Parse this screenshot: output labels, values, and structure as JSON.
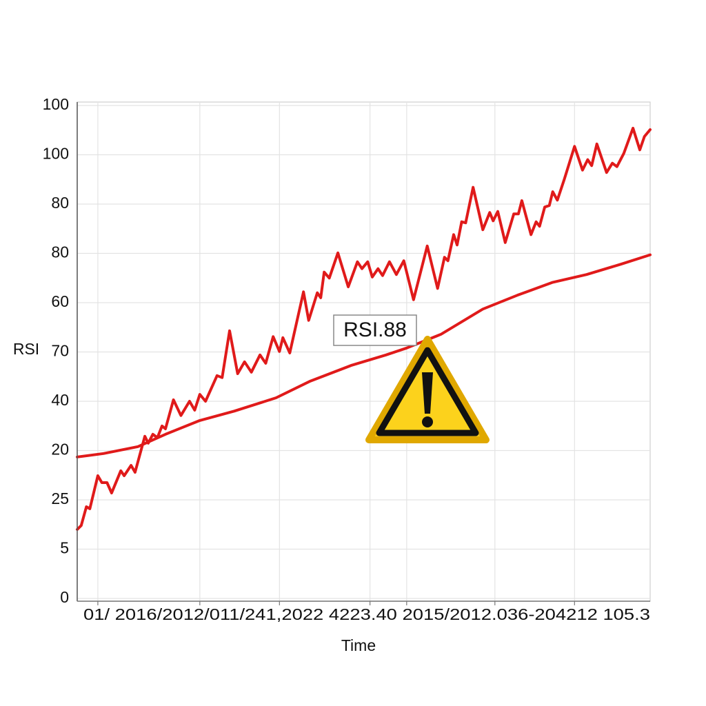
{
  "chart_data": {
    "type": "line",
    "ylabel": "RSI",
    "xlabel": "Time",
    "x_tick_text": "01/ 2016/2012/011/241,2022 4223.40 2015/2012.036-204212 105.3",
    "annotation": "RSI.88",
    "xlim": [
      0,
      100
    ],
    "xticks": [
      3.6,
      21.4,
      35.3,
      51.1,
      57.5,
      72.9,
      86.8
    ],
    "ylim": [
      0,
      100
    ],
    "yticks": [
      0,
      {
        "value": 10,
        "label": "5"
      },
      {
        "value": 20,
        "label": "25"
      },
      {
        "value": 30,
        "label": "20"
      },
      40,
      {
        "value": 50,
        "label": "70"
      },
      60,
      {
        "value": 70,
        "label": "80"
      },
      80,
      {
        "value": 90,
        "label": "100"
      },
      100
    ],
    "grid": true,
    "series": [
      {
        "color": "#e01a1a",
        "x": [
          0,
          0.7,
          1.6,
          2.2,
          3.6,
          4.3,
          5.2,
          6.0,
          7.6,
          8.2,
          9.4,
          10.1,
          11.8,
          12.4,
          13.2,
          14.0,
          14.8,
          15.4,
          16.8,
          18.1,
          19.6,
          20.5,
          21.4,
          22.4,
          24.4,
          25.3,
          26.6,
          28.0,
          29.2,
          30.4,
          31.9,
          32.9,
          34.2,
          35.3,
          35.9,
          37.1,
          39.5,
          40.4,
          41.9,
          42.5,
          43.1,
          44.0,
          45.5,
          47.3,
          48.9,
          49.7,
          50.7,
          51.5,
          52.5,
          53.3,
          54.5,
          55.7,
          57.0,
          58.7,
          61.1,
          62.9,
          64.1,
          64.7,
          65.7,
          66.3,
          67.1,
          67.8,
          69.1,
          70.8,
          72.0,
          72.6,
          73.4,
          74.7,
          76.2,
          77.0,
          77.6,
          79.2,
          80.1,
          80.7,
          81.6,
          82.4,
          83.0,
          83.8,
          85.0,
          86.8,
          88.2,
          89.1,
          89.8,
          90.7,
          92.4,
          93.4,
          94.2,
          95.4,
          97.0,
          98.2,
          99.0,
          100
        ],
        "values": [
          14.0,
          14.8,
          18.6,
          18.2,
          24.9,
          23.5,
          23.5,
          21.4,
          25.9,
          24.9,
          27.0,
          25.6,
          32.9,
          31.5,
          33.3,
          32.6,
          35.0,
          34.4,
          40.3,
          37.1,
          40.0,
          38.2,
          41.4,
          40.0,
          45.2,
          44.8,
          54.3,
          45.6,
          48.0,
          45.9,
          49.4,
          47.7,
          53.1,
          50.1,
          52.9,
          49.8,
          62.2,
          56.4,
          62.0,
          61.0,
          66.2,
          65.0,
          70.1,
          63.2,
          68.3,
          66.9,
          68.3,
          65.2,
          66.9,
          65.5,
          68.3,
          65.7,
          68.5,
          60.6,
          71.5,
          62.9,
          69.2,
          68.5,
          73.8,
          71.7,
          76.4,
          76.2,
          83.4,
          74.8,
          78.3,
          76.6,
          78.5,
          72.2,
          78.0,
          78.0,
          80.7,
          73.8,
          76.4,
          75.5,
          79.4,
          79.7,
          82.5,
          80.8,
          85.0,
          91.7,
          86.9,
          89.0,
          87.8,
          92.2,
          86.4,
          88.3,
          87.6,
          90.3,
          95.4,
          91.0,
          93.7,
          95.1
        ]
      },
      {
        "color": "#e01a1a",
        "x": [
          0,
          4.6,
          10.6,
          15.4,
          21.4,
          27.4,
          34.7,
          40.7,
          47.9,
          53.9,
          57.5,
          63.5,
          70.8,
          76.8,
          82.9,
          88.9,
          94.9,
          100
        ],
        "values": [
          28.7,
          29.4,
          30.8,
          33.3,
          36.1,
          38.0,
          40.7,
          44.1,
          47.3,
          49.4,
          50.8,
          53.6,
          58.7,
          61.5,
          64.1,
          65.7,
          67.8,
          69.7
        ]
      }
    ]
  }
}
